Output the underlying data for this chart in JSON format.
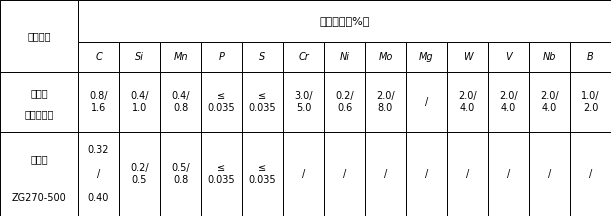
{
  "title_merged": "化学成分（%）",
  "col0_header": "材质配对",
  "element_headers": [
    "C",
    "Si",
    "Mn",
    "P",
    "S",
    "Cr",
    "Ni",
    "Mo",
    "Mg",
    "W",
    "V",
    "Nb",
    "B"
  ],
  "row1_label_line1": "外层：",
  "row1_label_line2": "含硼高速钢",
  "row1_values": [
    "0.8/\n1.6",
    "0.4/\n1.0",
    "0.4/\n0.8",
    "≤\n0.035",
    "≤\n0.035",
    "3.0/\n5.0",
    "0.2/\n0.6",
    "2.0/\n8.0",
    "/",
    "2.0/\n4.0",
    "2.0/\n4.0",
    "2.0/\n4.0",
    "1.0/\n2.0"
  ],
  "row2_label_line1": "内层：",
  "row2_label_line2": "ZG270-500",
  "row2_c_lines": [
    "0.32",
    "/",
    "0.40"
  ],
  "row2_values_rest": [
    "0.2/\n0.5",
    "0.5/\n0.8",
    "≤\n0.035",
    "≤\n0.035",
    "/",
    "/",
    "/",
    "/",
    "/",
    "/",
    "/",
    "/"
  ],
  "font_size": 7.0,
  "background_color": "#ffffff",
  "line_color": "#000000"
}
